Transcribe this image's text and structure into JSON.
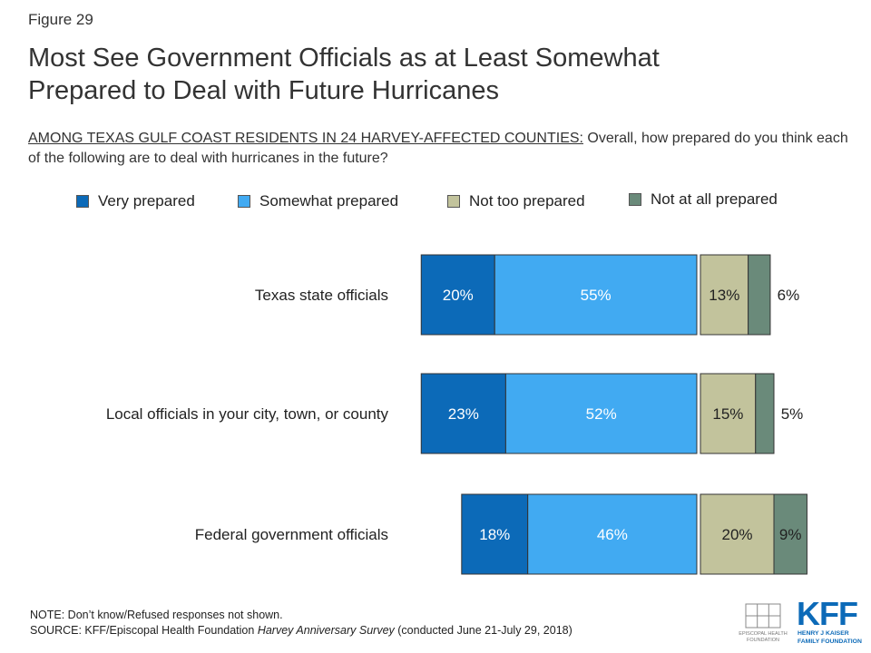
{
  "figure_label": "Figure 29",
  "title_line1": "Most See Government Officials as at Least Somewhat",
  "title_line2": "Prepared to Deal with Future Hurricanes",
  "subtitle_population": "AMONG TEXAS GULF COAST RESIDENTS IN 24 HARVEY-AFFECTED COUNTIES:",
  "subtitle_question": " Overall, how prepared do you think each of the following are to deal with hurricanes in the future?",
  "legend": [
    {
      "label": "Very prepared",
      "color": "#0c6ab8"
    },
    {
      "label": "Somewhat prepared",
      "color": "#41aaf2"
    },
    {
      "label": "Not too prepared",
      "color": "#c2c39c"
    },
    {
      "label": "Not at all prepared",
      "color": "#6a8a7a"
    }
  ],
  "chart_data": {
    "type": "bar",
    "orientation": "horizontal",
    "stacked": "diverging",
    "categories": [
      "Texas state officials",
      "Local officials in your city, town, or county",
      "Federal government officials"
    ],
    "series": [
      {
        "name": "Very prepared",
        "values": [
          20,
          23,
          18
        ],
        "labels": [
          "20%",
          "23%",
          "18%"
        ],
        "color": "#0c6ab8"
      },
      {
        "name": "Somewhat prepared",
        "values": [
          55,
          52,
          46
        ],
        "labels": [
          "55%",
          "52%",
          "46%"
        ],
        "color": "#41aaf2"
      },
      {
        "name": "Not too prepared",
        "values": [
          13,
          15,
          20
        ],
        "labels": [
          "13%",
          "15%",
          "20%"
        ],
        "color": "#c2c39c"
      },
      {
        "name": "Not at all prepared",
        "values": [
          6,
          5,
          9
        ],
        "labels": [
          "6%",
          "5%",
          "9%"
        ],
        "color": "#6a8a7a"
      }
    ],
    "grid": false,
    "legend_position": "top"
  },
  "note": "NOTE: Don’t know/Refused responses not shown.",
  "source_prefix": "SOURCE: KFF/Episcopal Health Foundation ",
  "source_italic": "Harvey Anniversary Survey",
  "source_suffix": " (conducted June 21-July 29, 2018)",
  "logos": {
    "ehf_line1": "EPISCOPAL HEALTH",
    "ehf_line2": "FOUNDATION",
    "kff_mark": "KFF",
    "kff_line1": "HENRY J KAISER",
    "kff_line2": "FAMILY FOUNDATION"
  }
}
